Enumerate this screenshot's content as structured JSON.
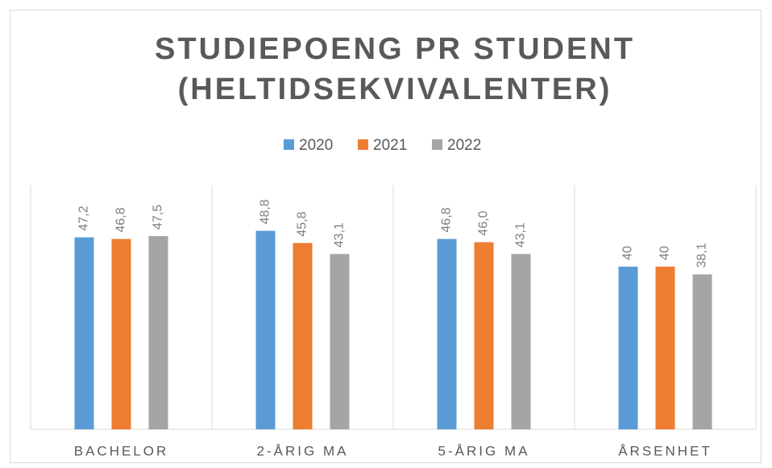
{
  "chart_data": {
    "type": "bar",
    "title": [
      "STUDIEPOENG PR STUDENT",
      "(HELTIDSEKVIVALENTER)"
    ],
    "categories": [
      "BACHELOR",
      "2-ÅRIG MA",
      "5-ÅRIG MA",
      "ÅRSENHET"
    ],
    "series": [
      {
        "name": "2020",
        "color": "#5b9bd5",
        "values": [
          47.2,
          48.8,
          46.8,
          40
        ],
        "value_labels": [
          "47,2",
          "48,8",
          "46,8",
          "40"
        ]
      },
      {
        "name": "2021",
        "color": "#ed7d31",
        "values": [
          46.8,
          45.8,
          46.0,
          40
        ],
        "value_labels": [
          "46,8",
          "45,8",
          "46,0",
          "40"
        ]
      },
      {
        "name": "2022",
        "color": "#a5a5a5",
        "values": [
          47.5,
          43.1,
          43.1,
          38.1
        ],
        "value_labels": [
          "47,5",
          "43,1",
          "43,1",
          "38,1"
        ]
      }
    ],
    "ylim": [
      0,
      60
    ]
  }
}
